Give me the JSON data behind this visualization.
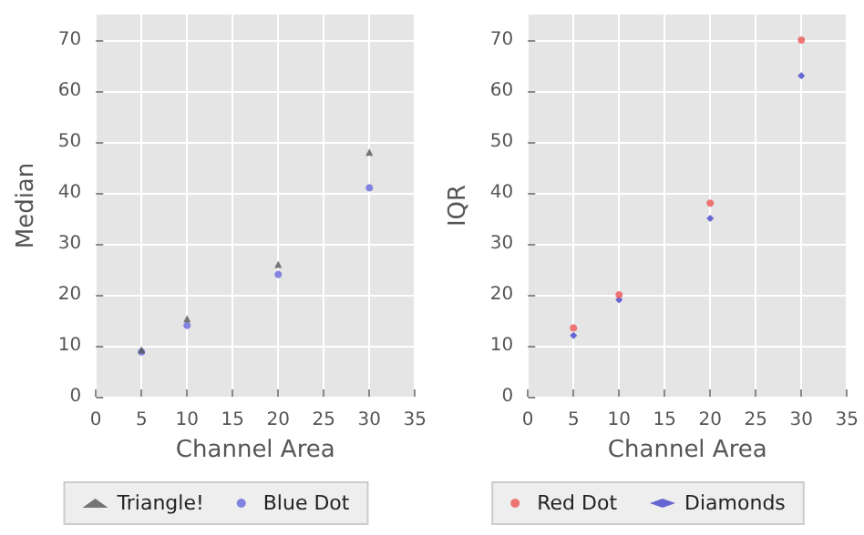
{
  "chart_data": [
    {
      "type": "scatter",
      "xlabel": "Channel Area",
      "ylabel": "Median",
      "xlim": [
        0,
        35
      ],
      "xticks": [
        0,
        5,
        10,
        15,
        20,
        25,
        30,
        35
      ],
      "ylim": [
        0,
        75
      ],
      "yticks": [
        0,
        10,
        20,
        30,
        40,
        50,
        60,
        70
      ],
      "grid": true,
      "legend": "bottom",
      "series": [
        {
          "name": "Triangle!",
          "color": "#555555",
          "marker": "triangle",
          "x": [
            5,
            10,
            20,
            30
          ],
          "values": [
            9.2,
            15.3,
            26,
            48
          ]
        },
        {
          "name": "Blue Dot",
          "color": "#6666dd",
          "marker": "circle",
          "x": [
            5,
            10,
            20,
            30
          ],
          "values": [
            8.8,
            14,
            24,
            41
          ]
        }
      ]
    },
    {
      "type": "scatter",
      "xlabel": "Channel Area",
      "ylabel": "IQR",
      "xlim": [
        0,
        35
      ],
      "xticks": [
        0,
        5,
        10,
        15,
        20,
        25,
        30,
        35
      ],
      "ylim": [
        0,
        75
      ],
      "yticks": [
        0,
        10,
        20,
        30,
        40,
        50,
        60,
        70
      ],
      "grid": true,
      "legend": "bottom",
      "series": [
        {
          "name": "Red Dot",
          "color": "#ee5555",
          "marker": "circle",
          "x": [
            5,
            10,
            20,
            30
          ],
          "values": [
            13.5,
            20,
            38,
            70
          ]
        },
        {
          "name": "Diamonds",
          "color": "#4444cc",
          "marker": "diamond",
          "x": [
            5,
            10,
            20,
            30
          ],
          "values": [
            12,
            19,
            35,
            63
          ]
        }
      ]
    }
  ]
}
